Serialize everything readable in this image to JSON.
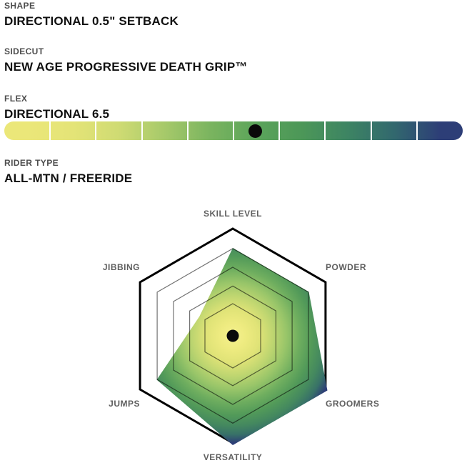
{
  "sections": {
    "shape": {
      "label": "SHAPE",
      "value": "DIRECTIONAL 0.5\" SETBACK"
    },
    "sidecut": {
      "label": "SIDECUT",
      "value": "NEW AGE PROGRESSIVE DEATH GRIP™"
    },
    "flex": {
      "label": "FLEX",
      "value": "DIRECTIONAL 6.5"
    },
    "rider_type": {
      "label": "RIDER TYPE",
      "value": "ALL-MTN / FREERIDE"
    }
  },
  "chart_data": [
    {
      "type": "gauge",
      "title": "FLEX",
      "value_label": "DIRECTIONAL 6.5",
      "value": 6.5,
      "scale": [
        0,
        10
      ],
      "segments": 10,
      "dot_fraction": 0.548,
      "gradient": [
        "#ebe779",
        "#e4e477",
        "#cfdb73",
        "#a6c96a",
        "#7ab45f",
        "#5ba45a",
        "#4c9758",
        "#3d8463",
        "#32686e",
        "#2d3e77"
      ]
    },
    {
      "type": "radar",
      "axes": [
        "SKILL LEVEL",
        "POWDER",
        "GROOMERS",
        "VERSATILITY",
        "JUMPS",
        "JIBBING"
      ],
      "values": [
        4,
        4,
        5,
        5,
        4,
        1.3
      ],
      "value_scale": [
        0,
        5
      ],
      "radius_fractions": [
        0.82,
        0.82,
        1.02,
        1.02,
        0.82,
        0.36
      ],
      "grid_rings": [
        0.3,
        0.465,
        0.64,
        0.815
      ],
      "outer_ring": 1.0,
      "grid_color": "rgba(0,0,0,0.55)",
      "outline_color": "#000000",
      "dot_color": "#0a0a0a",
      "fill_gradient": [
        {
          "offset": 0.0,
          "color": "#f5f18e"
        },
        {
          "offset": 0.12,
          "color": "#eeeb80"
        },
        {
          "offset": 0.25,
          "color": "#e0e377"
        },
        {
          "offset": 0.38,
          "color": "#bdd570"
        },
        {
          "offset": 0.5,
          "color": "#98c569"
        },
        {
          "offset": 0.62,
          "color": "#6fae5f"
        },
        {
          "offset": 0.74,
          "color": "#529a59"
        },
        {
          "offset": 0.84,
          "color": "#44885f"
        },
        {
          "offset": 0.92,
          "color": "#387168"
        },
        {
          "offset": 1.0,
          "color": "#2d3e77"
        }
      ]
    }
  ]
}
